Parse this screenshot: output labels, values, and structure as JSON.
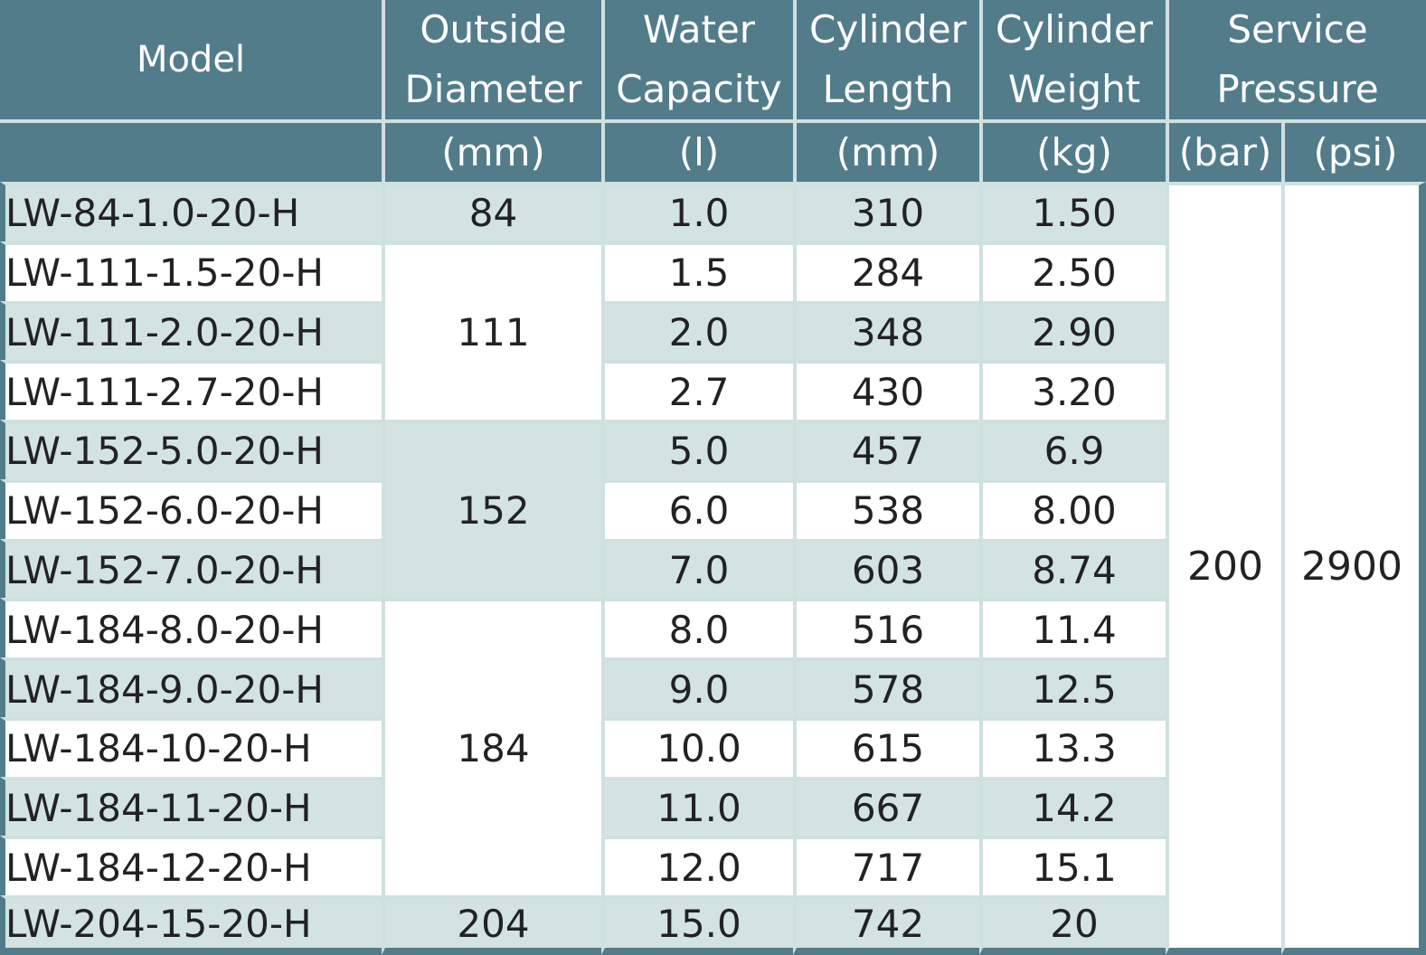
{
  "headers": {
    "model": "Model",
    "outside_diameter": [
      "Outside",
      "Diameter"
    ],
    "water_capacity": [
      "Water",
      "Capacity"
    ],
    "cylinder_length": [
      "Cylinder",
      "Length"
    ],
    "cylinder_weight": [
      "Cylinder",
      "Weight"
    ],
    "service_pressure": [
      "Service",
      "Pressure"
    ]
  },
  "units": {
    "outside_diameter": "(mm)",
    "water_capacity": "(l)",
    "cylinder_length": "(mm)",
    "cylinder_weight": "(kg)",
    "pressure_bar": "(bar)",
    "pressure_psi": "(psi)"
  },
  "service_pressure": {
    "bar": "200",
    "psi": "2900"
  },
  "diameter_groups": [
    {
      "value": "84",
      "start": 0,
      "rows": 1,
      "shade": "shaded"
    },
    {
      "value": "111",
      "start": 1,
      "rows": 3,
      "shade": "plain"
    },
    {
      "value": "152",
      "start": 4,
      "rows": 3,
      "shade": "shaded"
    },
    {
      "value": "184",
      "start": 7,
      "rows": 5,
      "shade": "plain"
    },
    {
      "value": "204",
      "start": 12,
      "rows": 1,
      "shade": "shaded"
    }
  ],
  "rows": [
    {
      "model": "LW-84-1.0-20-H",
      "capacity": "1.0",
      "length": "310",
      "weight": "1.50"
    },
    {
      "model": "LW-111-1.5-20-H",
      "capacity": "1.5",
      "length": "284",
      "weight": "2.50"
    },
    {
      "model": "LW-111-2.0-20-H",
      "capacity": "2.0",
      "length": "348",
      "weight": "2.90"
    },
    {
      "model": "LW-111-2.7-20-H",
      "capacity": "2.7",
      "length": "430",
      "weight": "3.20"
    },
    {
      "model": "LW-152-5.0-20-H",
      "capacity": "5.0",
      "length": "457",
      "weight": "6.9"
    },
    {
      "model": "LW-152-6.0-20-H",
      "capacity": "6.0",
      "length": "538",
      "weight": "8.00"
    },
    {
      "model": "LW-152-7.0-20-H",
      "capacity": "7.0",
      "length": "603",
      "weight": "8.74"
    },
    {
      "model": "LW-184-8.0-20-H",
      "capacity": "8.0",
      "length": "516",
      "weight": "11.4"
    },
    {
      "model": "LW-184-9.0-20-H",
      "capacity": "9.0",
      "length": "578",
      "weight": "12.5"
    },
    {
      "model": "LW-184-10-20-H",
      "capacity": "10.0",
      "length": "615",
      "weight": "13.3"
    },
    {
      "model": "LW-184-11-20-H",
      "capacity": "11.0",
      "length": "667",
      "weight": "14.2"
    },
    {
      "model": "LW-184-12-20-H",
      "capacity": "12.0",
      "length": "717",
      "weight": "15.1"
    },
    {
      "model": "LW-204-15-20-H",
      "capacity": "15.0",
      "length": "742",
      "weight": "20"
    }
  ],
  "colors": {
    "header_bg": "#537c8b",
    "header_text": "#ffffff",
    "row_shaded": "#d2e3e1",
    "row_plain": "#ffffff",
    "grid_line": "#cfe0e0"
  }
}
